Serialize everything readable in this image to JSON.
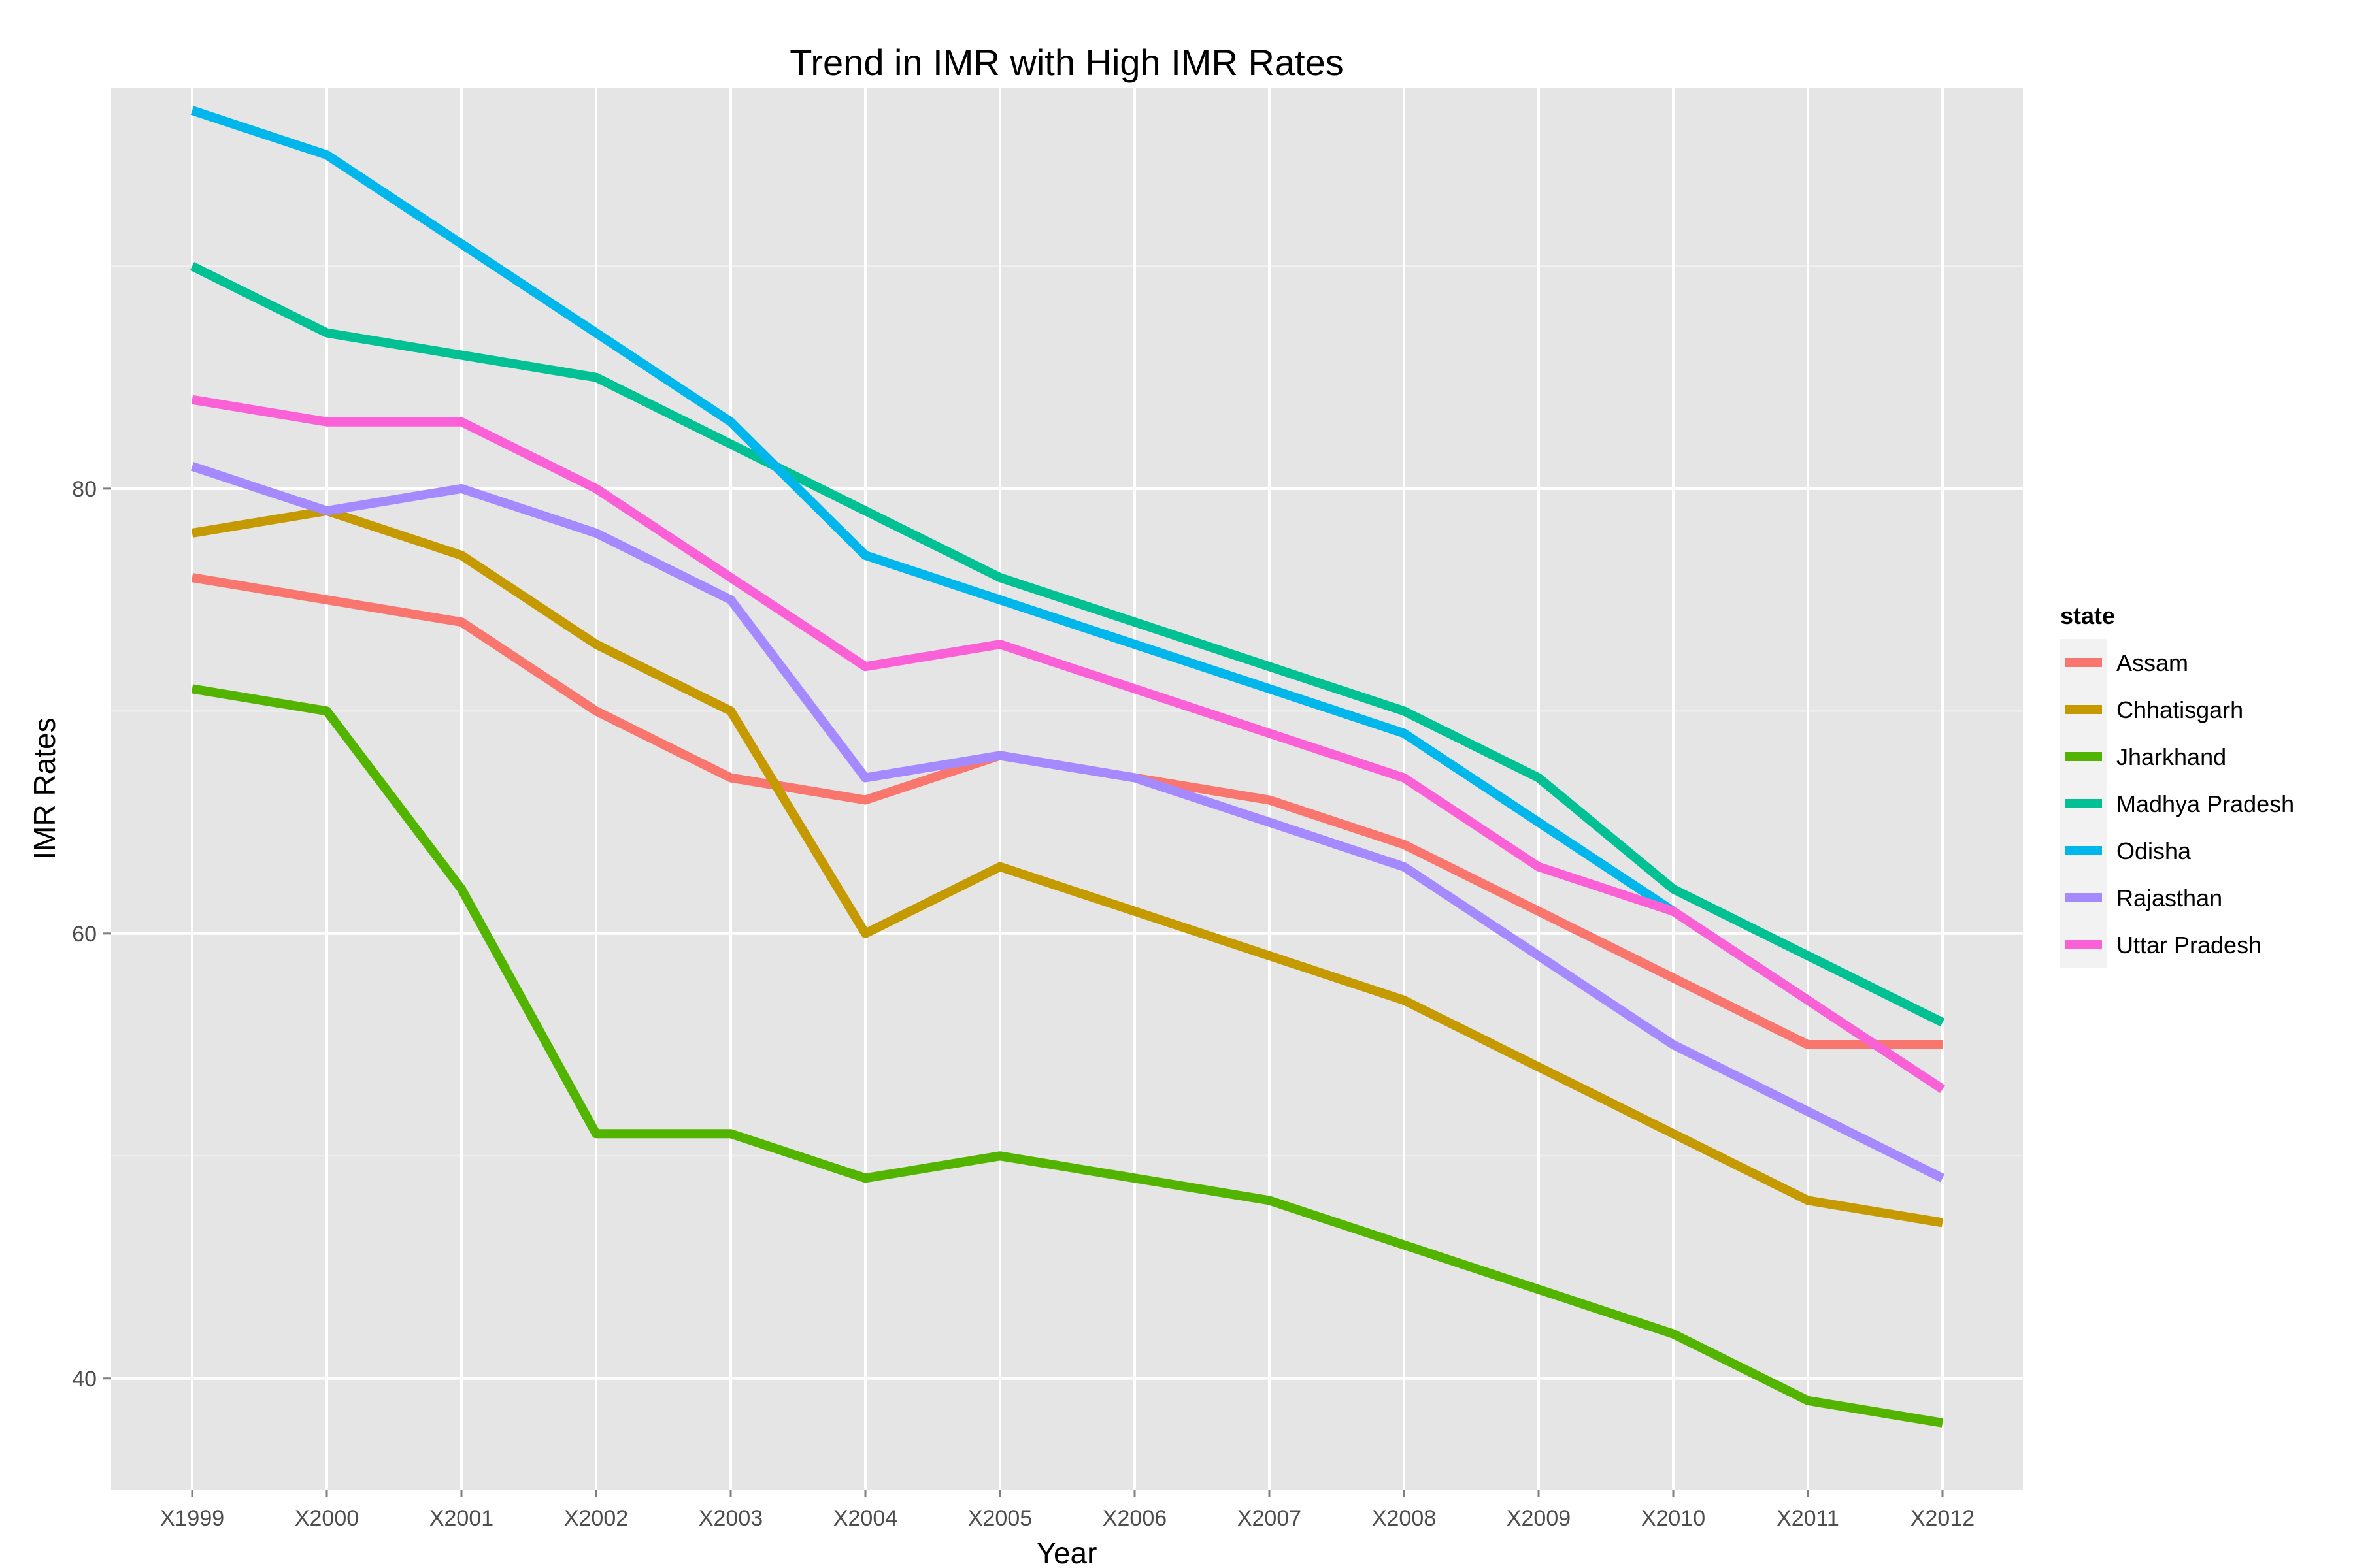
{
  "chart_data": {
    "type": "line",
    "title": "Trend in IMR with High IMR Rates",
    "xlabel": "Year",
    "ylabel": "IMR Rates",
    "categories": [
      "X1999",
      "X2000",
      "X2001",
      "X2002",
      "X2003",
      "X2004",
      "X2005",
      "X2006",
      "X2007",
      "X2008",
      "X2009",
      "X2010",
      "X2011",
      "X2012"
    ],
    "ylim": [
      35,
      98
    ],
    "yticks": [
      40,
      60,
      80
    ],
    "grid": true,
    "legend_position": "right",
    "legend_title": "state",
    "series": [
      {
        "name": "Assam",
        "color": "#F8766D",
        "values": [
          76,
          75,
          74,
          70,
          67,
          66,
          68,
          67,
          66,
          64,
          61,
          58,
          55,
          55
        ]
      },
      {
        "name": "Chhatisgarh",
        "color": "#C49A00",
        "values": [
          78,
          79,
          77,
          73,
          70,
          60,
          63,
          61,
          59,
          57,
          54,
          51,
          48,
          47
        ]
      },
      {
        "name": "Jharkhand",
        "color": "#53B400",
        "values": [
          71,
          70,
          62,
          51,
          51,
          49,
          50,
          49,
          48,
          46,
          44,
          42,
          39,
          38
        ]
      },
      {
        "name": "Madhya Pradesh",
        "color": "#00C094",
        "values": [
          90,
          87,
          86,
          85,
          82,
          79,
          76,
          74,
          72,
          70,
          67,
          62,
          59,
          56
        ]
      },
      {
        "name": "Odisha",
        "color": "#00B6EB",
        "values": [
          97,
          95,
          91,
          87,
          83,
          77,
          75,
          73,
          71,
          69,
          65,
          61,
          57,
          53
        ]
      },
      {
        "name": "Rajasthan",
        "color": "#A58AFF",
        "values": [
          81,
          79,
          80,
          78,
          75,
          67,
          68,
          67,
          65,
          63,
          59,
          55,
          52,
          49
        ]
      },
      {
        "name": "Uttar Pradesh",
        "color": "#FB61D7",
        "values": [
          84,
          83,
          83,
          80,
          76,
          72,
          73,
          71,
          69,
          67,
          63,
          61,
          57,
          53
        ]
      }
    ]
  }
}
